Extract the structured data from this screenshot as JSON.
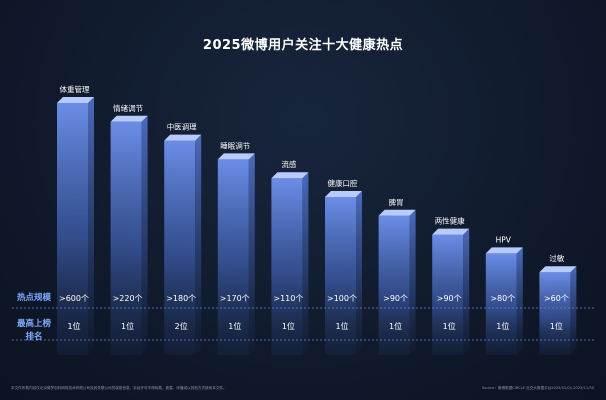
{
  "title": "2025微博用户关注十大健康热点",
  "colors": {
    "background": "#101a2c",
    "bar_front_top": "#6f93f0",
    "bar_front_bottom": "#1a2a4b",
    "bar_side": "#4e6fc4",
    "bar_top": "#b7cbff",
    "accent_label": "#7fa8ff",
    "divider": "#5a86e8"
  },
  "row_labels": {
    "heat_scale": "热点规模",
    "top_rank": "最高上榜排名"
  },
  "chart_data": {
    "type": "bar",
    "title": "2025微博用户关注十大健康热点",
    "categories": [
      "体重管理",
      "情绪调节",
      "中医调理",
      "睡眠调节",
      "流感",
      "健康口腔",
      "脾胃",
      "两性健康",
      "HPV",
      "过敏"
    ],
    "values": [
      10,
      9,
      8,
      7,
      6,
      5,
      4,
      3,
      2,
      1
    ],
    "value_meaning": "relative rank height (decorative descending bars)",
    "heat_scale": [
      ">600个",
      ">220个",
      ">180个",
      ">170个",
      ">110个",
      ">100个",
      ">90个",
      ">90个",
      ">80个",
      ">60个"
    ],
    "top_rank": [
      "1位",
      "1位",
      "2位",
      "1位",
      "1位",
      "1位",
      "1位",
      "1位",
      "1位",
      "1位"
    ],
    "xlabel": "",
    "ylabel": "",
    "ylim": [
      0,
      10
    ]
  },
  "footnotes": {
    "left": "本文件所载内容仅北京微梦创科网络技术有限公司及其关联公司的保密信息，未经许可不得转载、披露、传播或以其他方式使用本文件。",
    "right": "Source：微博数据CIRCLE 社交大数据平台2025/01/01-2025/11/30"
  }
}
